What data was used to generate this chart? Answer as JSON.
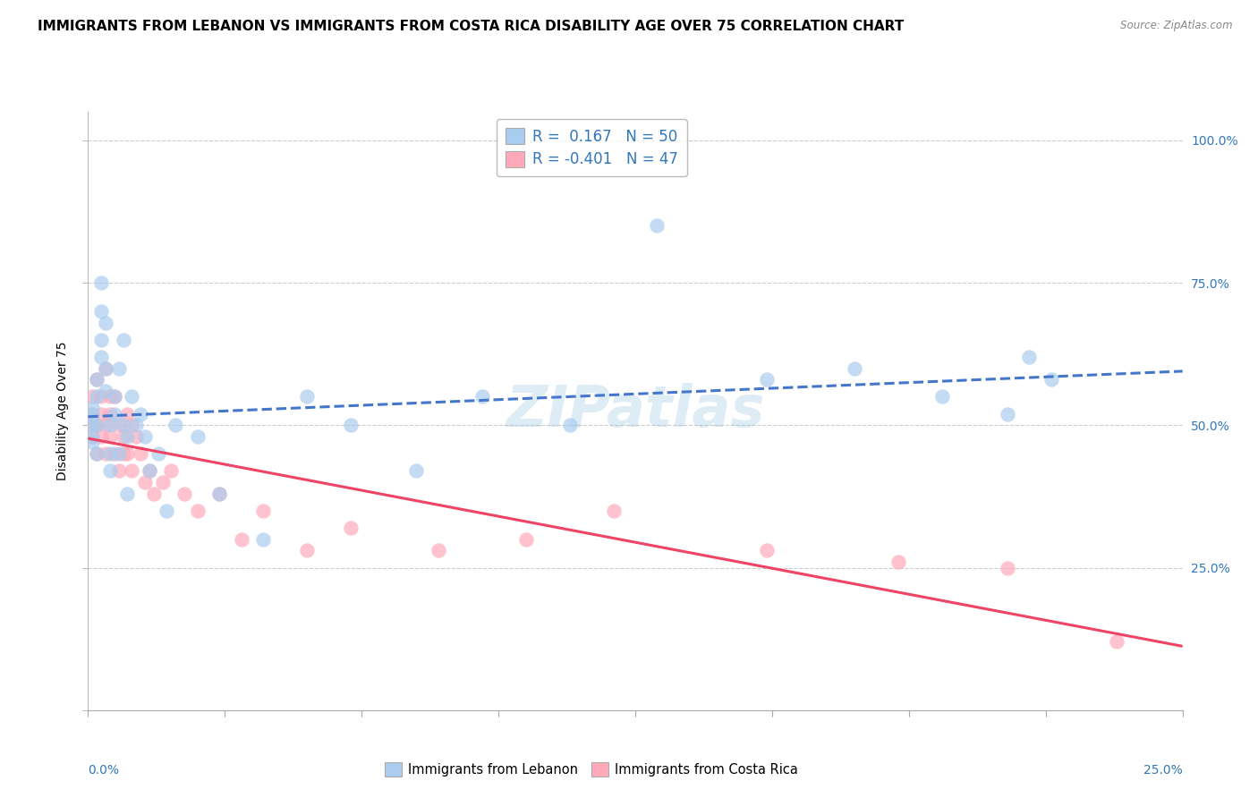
{
  "title": "IMMIGRANTS FROM LEBANON VS IMMIGRANTS FROM COSTA RICA DISABILITY AGE OVER 75 CORRELATION CHART",
  "source": "Source: ZipAtlas.com",
  "ylabel": "Disability Age Over 75",
  "xlim": [
    0.0,
    0.25
  ],
  "ylim": [
    0.0,
    1.05
  ],
  "color_lebanon": "#aaccee",
  "color_costarica": "#ffaabb",
  "color_lebanon_line": "#4477cc",
  "color_costarica_line": "#ee4466",
  "lebanon_r": 0.167,
  "lebanon_n": 50,
  "costarica_r": -0.401,
  "costarica_n": 47,
  "background_color": "#ffffff",
  "grid_color": "#cccccc",
  "title_fontsize": 11,
  "axis_fontsize": 10,
  "legend_fontsize": 12,
  "watermark": "ZIPatlas",
  "leb_x": [
    0.001,
    0.001,
    0.001,
    0.001,
    0.001,
    0.002,
    0.002,
    0.002,
    0.002,
    0.003,
    0.003,
    0.003,
    0.003,
    0.004,
    0.004,
    0.004,
    0.005,
    0.005,
    0.005,
    0.006,
    0.006,
    0.007,
    0.007,
    0.008,
    0.008,
    0.009,
    0.009,
    0.01,
    0.011,
    0.012,
    0.013,
    0.014,
    0.016,
    0.018,
    0.02,
    0.025,
    0.03,
    0.04,
    0.05,
    0.06,
    0.075,
    0.09,
    0.11,
    0.13,
    0.155,
    0.175,
    0.195,
    0.21,
    0.215,
    0.22
  ],
  "leb_y": [
    0.5,
    0.52,
    0.48,
    0.53,
    0.47,
    0.55,
    0.5,
    0.45,
    0.58,
    0.65,
    0.62,
    0.7,
    0.75,
    0.68,
    0.6,
    0.56,
    0.5,
    0.45,
    0.42,
    0.52,
    0.55,
    0.6,
    0.45,
    0.65,
    0.5,
    0.48,
    0.38,
    0.55,
    0.5,
    0.52,
    0.48,
    0.42,
    0.45,
    0.35,
    0.5,
    0.48,
    0.38,
    0.3,
    0.55,
    0.5,
    0.42,
    0.55,
    0.5,
    0.85,
    0.58,
    0.6,
    0.55,
    0.52,
    0.62,
    0.58
  ],
  "cr_x": [
    0.001,
    0.001,
    0.001,
    0.001,
    0.002,
    0.002,
    0.002,
    0.003,
    0.003,
    0.003,
    0.004,
    0.004,
    0.004,
    0.005,
    0.005,
    0.005,
    0.006,
    0.006,
    0.007,
    0.007,
    0.008,
    0.008,
    0.009,
    0.009,
    0.01,
    0.01,
    0.011,
    0.012,
    0.013,
    0.014,
    0.015,
    0.017,
    0.019,
    0.022,
    0.025,
    0.03,
    0.035,
    0.04,
    0.05,
    0.06,
    0.08,
    0.1,
    0.12,
    0.155,
    0.185,
    0.21,
    0.235
  ],
  "cr_y": [
    0.52,
    0.5,
    0.48,
    0.55,
    0.5,
    0.45,
    0.58,
    0.52,
    0.48,
    0.55,
    0.5,
    0.45,
    0.6,
    0.55,
    0.48,
    0.52,
    0.45,
    0.55,
    0.5,
    0.42,
    0.48,
    0.45,
    0.52,
    0.45,
    0.5,
    0.42,
    0.48,
    0.45,
    0.4,
    0.42,
    0.38,
    0.4,
    0.42,
    0.38,
    0.35,
    0.38,
    0.3,
    0.35,
    0.28,
    0.32,
    0.28,
    0.3,
    0.35,
    0.28,
    0.26,
    0.25,
    0.12
  ]
}
